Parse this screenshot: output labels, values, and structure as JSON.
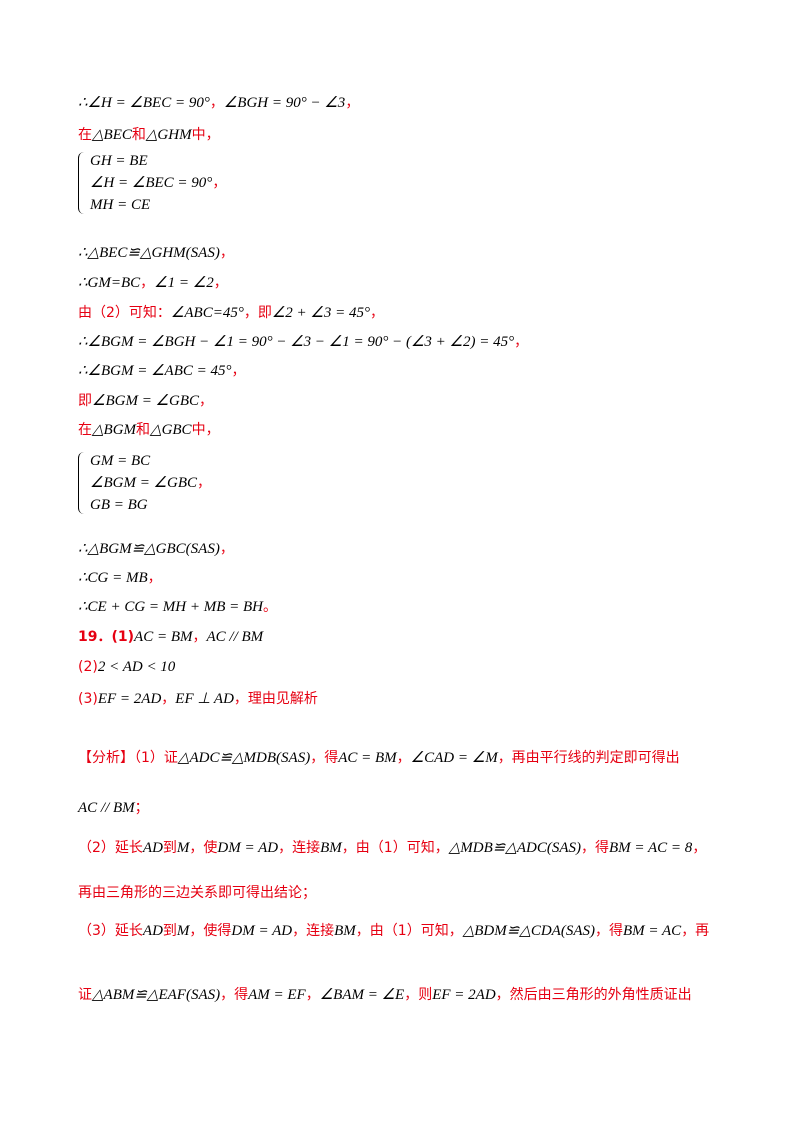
{
  "lines": [
    {
      "segments": [
        [
          "∴∠H = ∠BEC = 90°",
          "#000000"
        ],
        [
          "，",
          "#e60012"
        ],
        [
          "∠BGH = 90° − ∠3",
          "#000000"
        ],
        [
          "，",
          "#e60012"
        ]
      ]
    },
    {
      "segments": [
        [
          "在",
          "#e60012"
        ],
        [
          "△BEC",
          "#000000"
        ],
        [
          "和",
          "#e60012"
        ],
        [
          "△GHM",
          "#000000"
        ],
        [
          "中，",
          "#e60012"
        ]
      ]
    },
    {
      "system": [
        "GH = BE",
        "∠H = ∠BEC = 90°",
        "MH = CE"
      ],
      "segments": [
        [
          "，",
          "#e60012"
        ]
      ]
    },
    {
      "segments": [
        [
          "∴△BEC≌△GHM(SAS)",
          "#000000"
        ],
        [
          "，",
          "#e60012"
        ]
      ]
    },
    {
      "segments": [
        [
          "∴GM=BC",
          "#000000"
        ],
        [
          "，",
          "#e60012"
        ],
        [
          "∠1 = ∠2",
          "#000000"
        ],
        [
          "，",
          "#e60012"
        ]
      ]
    },
    {
      "segments": [
        [
          "由（2）可知：",
          "#e60012"
        ],
        [
          "∠ABC=45°",
          "#000000"
        ],
        [
          "，即",
          "#e60012"
        ],
        [
          "∠2 + ∠3 = 45°",
          "#000000"
        ],
        [
          "，",
          "#e60012"
        ]
      ]
    },
    {
      "segments": [
        [
          "∴∠BGM = ∠BGH − ∠1 = 90° − ∠3 − ∠1 = 90° − (∠3 + ∠2) = 45°",
          "#000000"
        ],
        [
          "，",
          "#e60012"
        ]
      ]
    },
    {
      "segments": [
        [
          "∴∠BGM = ∠ABC = 45°",
          "#000000"
        ],
        [
          "，",
          "#e60012"
        ]
      ]
    },
    {
      "segments": [
        [
          "即",
          "#e60012"
        ],
        [
          "∠BGM = ∠GBC",
          "#000000"
        ],
        [
          "，",
          "#e60012"
        ]
      ]
    },
    {
      "segments": [
        [
          "在",
          "#e60012"
        ],
        [
          "△BGM",
          "#000000"
        ],
        [
          "和",
          "#e60012"
        ],
        [
          "△GBC",
          "#000000"
        ],
        [
          "中，",
          "#e60012"
        ]
      ]
    },
    {
      "system": [
        "GM = BC",
        "∠BGM = ∠GBC",
        "GB = BG"
      ],
      "segments": [
        [
          "，",
          "#e60012"
        ]
      ]
    },
    {
      "segments": [
        [
          "∴△BGM≌△GBC(SAS)",
          "#000000"
        ],
        [
          "，",
          "#e60012"
        ]
      ]
    },
    {
      "segments": [
        [
          "∴CG = MB",
          "#000000"
        ],
        [
          "，",
          "#e60012"
        ]
      ]
    },
    {
      "segments": [
        [
          "∴CE + CG = MH + MB = BH",
          "#000000"
        ],
        [
          "。",
          "#e60012"
        ]
      ]
    },
    {
      "segments": [
        [
          "19．(1)",
          "#e60012"
        ],
        [
          "AC = BM",
          "#000000"
        ],
        [
          "，",
          "#e60012"
        ],
        [
          "AC // BM",
          "#000000"
        ]
      ]
    },
    {
      "segments": [
        [
          "(2)",
          "#e60012"
        ],
        [
          "2 < AD < 10",
          "#000000"
        ]
      ]
    },
    {
      "segments": [
        [
          "(3)",
          "#e60012"
        ],
        [
          "EF = 2AD",
          "#000000"
        ],
        [
          "，",
          "#e60012"
        ],
        [
          "EF ⊥ AD",
          "#000000"
        ],
        [
          "，理由见解析",
          "#e60012"
        ]
      ]
    },
    {
      "segments": [
        [
          "【分析】（1）证",
          "#e60012"
        ],
        [
          "△ADC≌△MDB(SAS)",
          "#000000"
        ],
        [
          "，得",
          "#e60012"
        ],
        [
          "AC = BM",
          "#000000"
        ],
        [
          "，",
          "#e60012"
        ],
        [
          "∠CAD = ∠M",
          "#000000"
        ],
        [
          "，再由平行线的判定即可得出",
          "#e60012"
        ]
      ]
    },
    {
      "segments": [
        [
          "AC // BM",
          "#000000"
        ],
        [
          "；",
          "#e60012"
        ]
      ]
    },
    {
      "segments": [
        [
          "（2）延长",
          "#e60012"
        ],
        [
          "AD",
          "#000000"
        ],
        [
          "到",
          "#e60012"
        ],
        [
          "M",
          "#000000"
        ],
        [
          "，使",
          "#e60012"
        ],
        [
          "DM = AD",
          "#000000"
        ],
        [
          "，连接",
          "#e60012"
        ],
        [
          "BM",
          "#000000"
        ],
        [
          "，由（1）可知，",
          "#e60012"
        ],
        [
          "△MDB≌△ADC(SAS)",
          "#000000"
        ],
        [
          "，得",
          "#e60012"
        ],
        [
          "BM = AC = 8",
          "#000000"
        ],
        [
          "，",
          "#e60012"
        ]
      ]
    },
    {
      "segments": [
        [
          "再由三角形的三边关系即可得出结论；",
          "#e60012"
        ]
      ]
    },
    {
      "segments": [
        [
          "（3）延长",
          "#e60012"
        ],
        [
          "AD",
          "#000000"
        ],
        [
          "到",
          "#e60012"
        ],
        [
          "M",
          "#000000"
        ],
        [
          "，使得",
          "#e60012"
        ],
        [
          "DM = AD",
          "#000000"
        ],
        [
          "，连接",
          "#e60012"
        ],
        [
          "BM",
          "#000000"
        ],
        [
          "，由（1）可知，",
          "#e60012"
        ],
        [
          "△BDM≌△CDA(SAS)",
          "#000000"
        ],
        [
          "，得",
          "#e60012"
        ],
        [
          "BM = AC",
          "#000000"
        ],
        [
          "，再",
          "#e60012"
        ]
      ]
    },
    {
      "segments": [
        [
          "证",
          "#e60012"
        ],
        [
          "△ABM≌△EAF(SAS)",
          "#000000"
        ],
        [
          "，得",
          "#e60012"
        ],
        [
          "AM = EF",
          "#000000"
        ],
        [
          "，",
          "#e60012"
        ],
        [
          "∠BAM = ∠E",
          "#000000"
        ],
        [
          "，则",
          "#e60012"
        ],
        [
          "EF = 2AD",
          "#000000"
        ],
        [
          "，然后由三角形的外角性质证出",
          "#e60012"
        ]
      ]
    }
  ]
}
